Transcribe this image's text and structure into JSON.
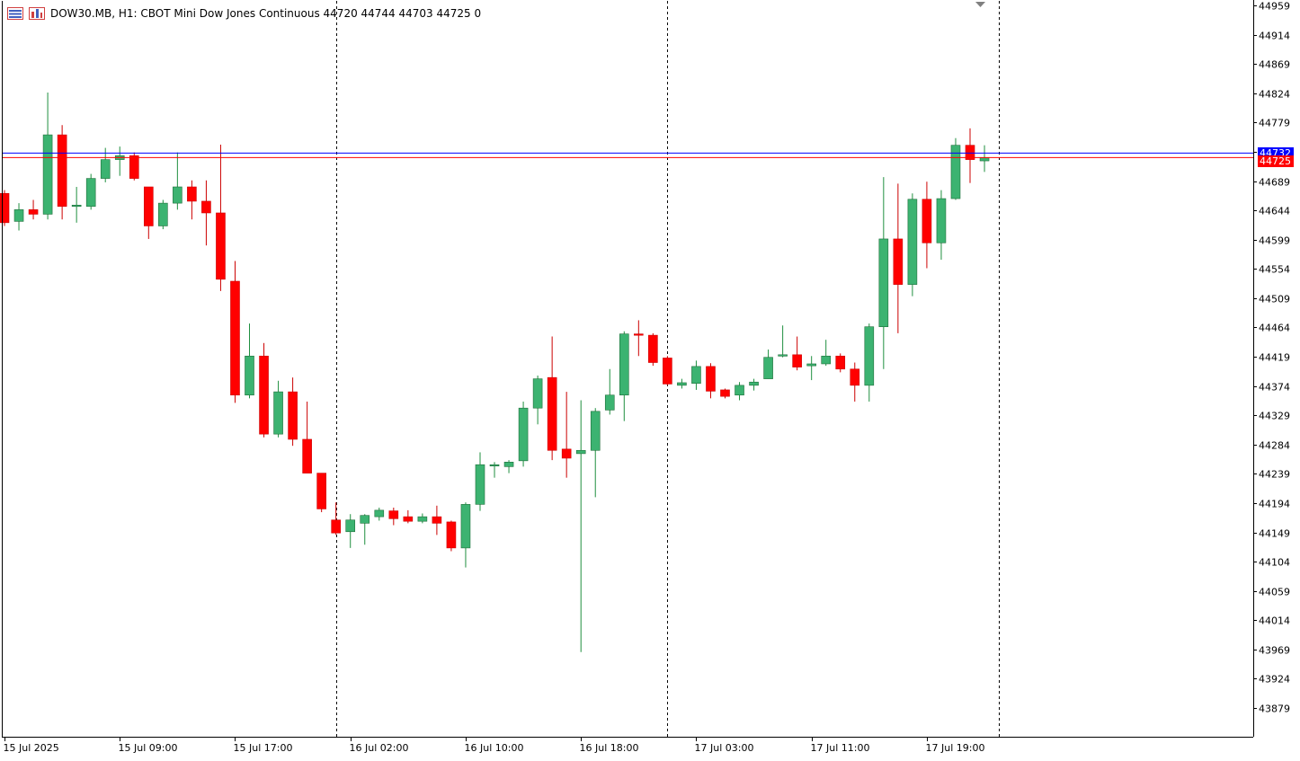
{
  "header": {
    "symbol_line": "DOW30.MB, H1:  CBOT Mini Dow Jones Continuous  44720 44744 44703 44725  0"
  },
  "colors": {
    "bull": "#3cb371",
    "bear": "#ff0000",
    "bid_line": "#ff0000",
    "ask_line": "#0000ff",
    "grid": "#000000",
    "axis_text": "#000000"
  },
  "price_tags": {
    "ask": "44732",
    "bid": "44725"
  },
  "chart_data": {
    "type": "candlestick",
    "ylim": [
      43834,
      44959
    ],
    "y_ticks": [
      44959,
      44914,
      44869,
      44824,
      44779,
      44734,
      44689,
      44644,
      44599,
      44554,
      44509,
      44464,
      44419,
      44374,
      44329,
      44284,
      44239,
      44194,
      44149,
      44104,
      44059,
      44014,
      43969,
      43924,
      43879
    ],
    "x_labels": [
      {
        "label": "15 Jul 2025",
        "index": 0
      },
      {
        "label": "15 Jul 09:00",
        "index": 8
      },
      {
        "label": "15 Jul 17:00",
        "index": 16
      },
      {
        "label": "16 Jul 02:00",
        "index": 24
      },
      {
        "label": "16 Jul 10:00",
        "index": 32
      },
      {
        "label": "16 Jul 18:00",
        "index": 40
      },
      {
        "label": "17 Jul 03:00",
        "index": 48
      },
      {
        "label": "17 Jul 11:00",
        "index": 56
      },
      {
        "label": "17 Jul 19:00",
        "index": 64
      }
    ],
    "day_separators": [
      23,
      46,
      69
    ],
    "bid": 44725,
    "ask": 44732,
    "candles": [
      {
        "o": 44670,
        "h": 44675,
        "l": 44620,
        "c": 44625
      },
      {
        "o": 44627,
        "h": 44655,
        "l": 44613,
        "c": 44645
      },
      {
        "o": 44645,
        "h": 44660,
        "l": 44630,
        "c": 44638
      },
      {
        "o": 44638,
        "h": 44825,
        "l": 44630,
        "c": 44760
      },
      {
        "o": 44760,
        "h": 44775,
        "l": 44630,
        "c": 44650
      },
      {
        "o": 44650,
        "h": 44680,
        "l": 44625,
        "c": 44652
      },
      {
        "o": 44650,
        "h": 44700,
        "l": 44645,
        "c": 44693
      },
      {
        "o": 44693,
        "h": 44740,
        "l": 44687,
        "c": 44722
      },
      {
        "o": 44722,
        "h": 44742,
        "l": 44697,
        "c": 44728
      },
      {
        "o": 44728,
        "h": 44733,
        "l": 44690,
        "c": 44693
      },
      {
        "o": 44680,
        "h": 44680,
        "l": 44600,
        "c": 44620
      },
      {
        "o": 44620,
        "h": 44660,
        "l": 44615,
        "c": 44655
      },
      {
        "o": 44655,
        "h": 44733,
        "l": 44645,
        "c": 44680
      },
      {
        "o": 44680,
        "h": 44690,
        "l": 44630,
        "c": 44658
      },
      {
        "o": 44658,
        "h": 44690,
        "l": 44590,
        "c": 44640
      },
      {
        "o": 44640,
        "h": 44745,
        "l": 44520,
        "c": 44538
      },
      {
        "o": 44535,
        "h": 44566,
        "l": 44348,
        "c": 44360
      },
      {
        "o": 44360,
        "h": 44470,
        "l": 44355,
        "c": 44420
      },
      {
        "o": 44420,
        "h": 44440,
        "l": 44295,
        "c": 44300
      },
      {
        "o": 44300,
        "h": 44382,
        "l": 44295,
        "c": 44365
      },
      {
        "o": 44365,
        "h": 44387,
        "l": 44282,
        "c": 44292
      },
      {
        "o": 44292,
        "h": 44350,
        "l": 44240,
        "c": 44240
      },
      {
        "o": 44240,
        "h": 44240,
        "l": 44180,
        "c": 44185
      },
      {
        "o": 44168,
        "h": 44195,
        "l": 44145,
        "c": 44148
      },
      {
        "o": 44150,
        "h": 44177,
        "l": 44125,
        "c": 44168
      },
      {
        "o": 44163,
        "h": 44177,
        "l": 44130,
        "c": 44175
      },
      {
        "o": 44173,
        "h": 44187,
        "l": 44167,
        "c": 44183
      },
      {
        "o": 44182,
        "h": 44187,
        "l": 44160,
        "c": 44170
      },
      {
        "o": 44173,
        "h": 44183,
        "l": 44163,
        "c": 44166
      },
      {
        "o": 44166,
        "h": 44178,
        "l": 44163,
        "c": 44173
      },
      {
        "o": 44173,
        "h": 44190,
        "l": 44145,
        "c": 44163
      },
      {
        "o": 44165,
        "h": 44167,
        "l": 44120,
        "c": 44125
      },
      {
        "o": 44125,
        "h": 44195,
        "l": 44095,
        "c": 44192
      },
      {
        "o": 44192,
        "h": 44272,
        "l": 44182,
        "c": 44253
      },
      {
        "o": 44253,
        "h": 44257,
        "l": 44233,
        "c": 44253
      },
      {
        "o": 44250,
        "h": 44260,
        "l": 44240,
        "c": 44257
      },
      {
        "o": 44259,
        "h": 44350,
        "l": 44250,
        "c": 44340
      },
      {
        "o": 44340,
        "h": 44390,
        "l": 44315,
        "c": 44385
      },
      {
        "o": 44387,
        "h": 44450,
        "l": 44260,
        "c": 44275
      },
      {
        "o": 44277,
        "h": 44365,
        "l": 44233,
        "c": 44263
      },
      {
        "o": 44270,
        "h": 44352,
        "l": 43965,
        "c": 44275
      },
      {
        "o": 44275,
        "h": 44340,
        "l": 44203,
        "c": 44335
      },
      {
        "o": 44337,
        "h": 44400,
        "l": 44330,
        "c": 44360
      },
      {
        "o": 44360,
        "h": 44458,
        "l": 44320,
        "c": 44454
      },
      {
        "o": 44454,
        "h": 44475,
        "l": 44420,
        "c": 44452
      },
      {
        "o": 44452,
        "h": 44455,
        "l": 44405,
        "c": 44410
      },
      {
        "o": 44417,
        "h": 44420,
        "l": 44375,
        "c": 44377
      },
      {
        "o": 44375,
        "h": 44385,
        "l": 44370,
        "c": 44379
      },
      {
        "o": 44378,
        "h": 44413,
        "l": 44368,
        "c": 44404
      },
      {
        "o": 44404,
        "h": 44409,
        "l": 44355,
        "c": 44366
      },
      {
        "o": 44368,
        "h": 44370,
        "l": 44355,
        "c": 44358
      },
      {
        "o": 44360,
        "h": 44380,
        "l": 44352,
        "c": 44375
      },
      {
        "o": 44375,
        "h": 44385,
        "l": 44367,
        "c": 44380
      },
      {
        "o": 44385,
        "h": 44430,
        "l": 44385,
        "c": 44418
      },
      {
        "o": 44420,
        "h": 44467,
        "l": 44418,
        "c": 44422
      },
      {
        "o": 44422,
        "h": 44450,
        "l": 44398,
        "c": 44403
      },
      {
        "o": 44405,
        "h": 44420,
        "l": 44383,
        "c": 44408
      },
      {
        "o": 44408,
        "h": 44445,
        "l": 44405,
        "c": 44420
      },
      {
        "o": 44420,
        "h": 44424,
        "l": 44395,
        "c": 44400
      },
      {
        "o": 44400,
        "h": 44410,
        "l": 44350,
        "c": 44375
      },
      {
        "o": 44375,
        "h": 44470,
        "l": 44350,
        "c": 44465
      },
      {
        "o": 44465,
        "h": 44695,
        "l": 44400,
        "c": 44600
      },
      {
        "o": 44600,
        "h": 44685,
        "l": 44455,
        "c": 44530
      },
      {
        "o": 44530,
        "h": 44670,
        "l": 44512,
        "c": 44661
      },
      {
        "o": 44661,
        "h": 44688,
        "l": 44555,
        "c": 44594
      },
      {
        "o": 44594,
        "h": 44675,
        "l": 44568,
        "c": 44662
      },
      {
        "o": 44662,
        "h": 44755,
        "l": 44660,
        "c": 44744
      },
      {
        "o": 44744,
        "h": 44770,
        "l": 44686,
        "c": 44722
      },
      {
        "o": 44720,
        "h": 44744,
        "l": 44703,
        "c": 44725
      }
    ]
  }
}
